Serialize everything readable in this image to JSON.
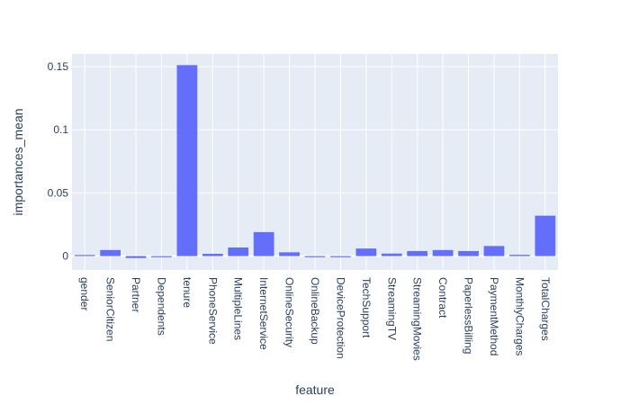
{
  "chart_data": {
    "type": "bar",
    "title": "",
    "xlabel": "feature",
    "ylabel": "importances_mean",
    "categories": [
      "gender",
      "SeniorCitizen",
      "Partner",
      "Dependents",
      "tenure",
      "PhoneService",
      "MultipleLines",
      "InternetService",
      "OnlineSecurity",
      "OnlineBackup",
      "DeviceProtection",
      "TechSupport",
      "StreamingTV",
      "StreamingMovies",
      "Contract",
      "PaperlessBilling",
      "PaymentMethod",
      "MonthlyCharges",
      "TotalCharges"
    ],
    "values": [
      0.0007,
      0.0048,
      -0.0015,
      -0.0006,
      0.1512,
      0.0018,
      0.0068,
      0.019,
      0.003,
      -0.0008,
      -0.0002,
      0.006,
      0.002,
      0.004,
      0.0048,
      0.004,
      0.008,
      0.001,
      0.032
    ],
    "ylim": [
      -0.011,
      0.16
    ],
    "yticks": [
      0,
      0.05,
      0.1,
      0.15
    ],
    "ytick_labels": [
      "0",
      "0.05",
      "0.1",
      "0.15"
    ],
    "grid": true,
    "colors": {
      "bar": "#636efa",
      "plot_bg": "#e5ecf6",
      "grid": "#ffffff",
      "text": "#2a3f5f"
    }
  }
}
